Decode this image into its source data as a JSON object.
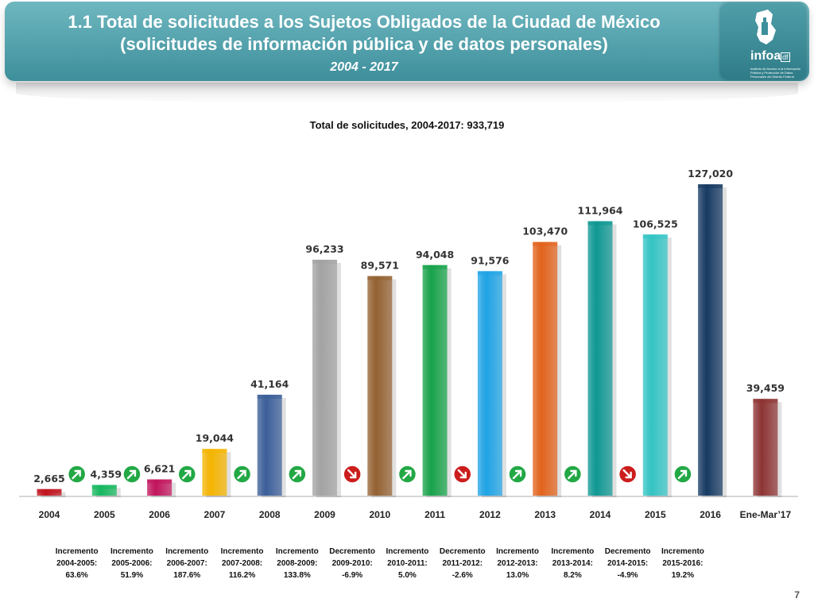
{
  "header": {
    "title_line1": "1.1 Total de solicitudes a los Sujetos Obligados de la Ciudad de México",
    "title_line2": "(solicitudes de información pública y de datos personales)",
    "period": "2004 - 2017",
    "logo_word": "infoa",
    "logo_df": "df",
    "logo_tagline": "Instituto de Acceso a la Información Pública y Protección de Datos Personales del Distrito Federal"
  },
  "chart_data": {
    "type": "bar",
    "title": "Total de solicitudes, 2004-2017: 933,719",
    "categories": [
      "2004",
      "2005",
      "2006",
      "2007",
      "2008",
      "2009",
      "2010",
      "2011",
      "2012",
      "2013",
      "2014",
      "2015",
      "2016",
      "Ene-Mar’17"
    ],
    "values": [
      2665,
      4359,
      6621,
      19044,
      41164,
      96233,
      89571,
      94048,
      91576,
      103470,
      111964,
      106525,
      127020,
      39459
    ],
    "value_labels": [
      "2,665",
      "4,359",
      "6,621",
      "19,044",
      "41,164",
      "96,233",
      "89,571",
      "94,048",
      "91,576",
      "103,470",
      "111,964",
      "106,525",
      "127,020",
      "39,459"
    ],
    "colors": [
      "#c0161f",
      "#18b860",
      "#c2155d",
      "#f4b400",
      "#3b5e9a",
      "#a3a3a3",
      "#946232",
      "#18a34a",
      "#1fa4e6",
      "#e2631c",
      "#0f9893",
      "#34c4c4",
      "#163a63",
      "#8e3434"
    ],
    "ylim": [
      0,
      140000
    ],
    "grid": false,
    "xlabel": "",
    "ylabel": ""
  },
  "changes": [
    {
      "label": "Incremento",
      "period": "2004-2005:",
      "pct": "63.6%",
      "direction": "up"
    },
    {
      "label": "Incremento",
      "period": "2005-2006:",
      "pct": "51.9%",
      "direction": "up"
    },
    {
      "label": "Incremento",
      "period": "2006-2007:",
      "pct": "187.6%",
      "direction": "up"
    },
    {
      "label": "Incremento",
      "period": "2007-2008:",
      "pct": "116.2%",
      "direction": "up"
    },
    {
      "label": "Incremento",
      "period": "2008-2009:",
      "pct": "133.8%",
      "direction": "up"
    },
    {
      "label": "Decremento",
      "period": "2009-2010:",
      "pct": "-6.9%",
      "direction": "down"
    },
    {
      "label": "Incremento",
      "period": "2010-2011:",
      "pct": "5.0%",
      "direction": "up"
    },
    {
      "label": "Decremento",
      "period": "2011-2012:",
      "pct": "-2.6%",
      "direction": "down"
    },
    {
      "label": "Incremento",
      "period": "2012-2013:",
      "pct": "13.0%",
      "direction": "up"
    },
    {
      "label": "Incremento",
      "period": "2013-2014:",
      "pct": "8.2%",
      "direction": "up"
    },
    {
      "label": "Decremento",
      "period": "2014-2015:",
      "pct": "-4.9%",
      "direction": "down"
    },
    {
      "label": "Incremento",
      "period": "2015-2016:",
      "pct": "19.2%",
      "direction": "up"
    }
  ],
  "arrow_colors": {
    "up": "#22a845",
    "down": "#cc1d1d"
  },
  "page_number": "7"
}
